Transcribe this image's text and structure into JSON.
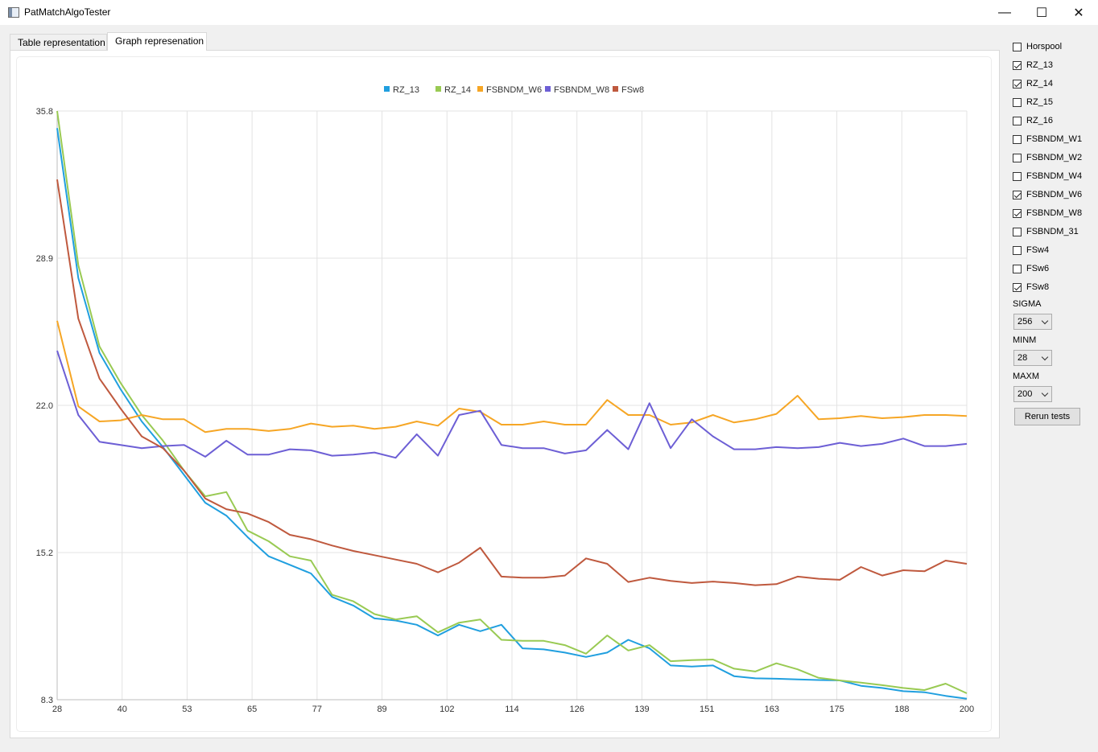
{
  "window": {
    "title": "PatMatchAlgoTester",
    "min": "—",
    "max": "☐",
    "close": "✕"
  },
  "tabs": [
    {
      "label": "Table representation"
    },
    {
      "label": "Graph represenation"
    }
  ],
  "sidebar": {
    "checkboxes": [
      {
        "label": "Horspool",
        "checked": false
      },
      {
        "label": "RZ_13",
        "checked": true
      },
      {
        "label": "RZ_14",
        "checked": true
      },
      {
        "label": "RZ_15",
        "checked": false
      },
      {
        "label": "RZ_16",
        "checked": false
      },
      {
        "label": "FSBNDM_W1",
        "checked": false
      },
      {
        "label": "FSBNDM_W2",
        "checked": false
      },
      {
        "label": "FSBNDM_W4",
        "checked": false
      },
      {
        "label": "FSBNDM_W6",
        "checked": true
      },
      {
        "label": "FSBNDM_W8",
        "checked": true
      },
      {
        "label": "FSBNDM_31",
        "checked": false
      },
      {
        "label": "FSw4",
        "checked": false
      },
      {
        "label": "FSw6",
        "checked": false
      },
      {
        "label": "FSw8",
        "checked": true
      }
    ],
    "sigma": {
      "label": "SIGMA",
      "value": "256"
    },
    "minm": {
      "label": "MINM",
      "value": "28"
    },
    "maxm": {
      "label": "MAXM",
      "value": "200"
    },
    "rerun_label": "Rerun tests"
  },
  "chart_data": {
    "type": "line",
    "title": "",
    "xlabel": "",
    "ylabel": "",
    "xlim": [
      28,
      200
    ],
    "ylim": [
      8.3,
      35.8
    ],
    "x_ticks": [
      "28",
      "40",
      "53",
      "65",
      "77",
      "89",
      "102",
      "114",
      "126",
      "139",
      "151",
      "163",
      "175",
      "188",
      "200"
    ],
    "y_ticks": [
      "35.8",
      "28.9",
      "22.0",
      "15.2",
      "8.3"
    ],
    "grid": true,
    "legend_position": "top-center",
    "x": [
      28,
      32,
      36,
      40,
      44,
      48,
      52,
      56,
      60,
      64,
      68,
      72,
      76,
      80,
      84,
      88,
      92,
      96,
      100,
      104,
      108,
      112,
      116,
      120,
      124,
      128,
      132,
      136,
      140,
      144,
      148,
      152,
      156,
      160,
      164,
      168,
      172,
      176,
      180,
      184,
      188,
      192,
      196,
      200
    ],
    "series": [
      {
        "name": "RZ_13",
        "color": "#209fdf",
        "values": [
          35.0,
          28.0,
          24.5,
          22.8,
          21.3,
          20.1,
          18.8,
          17.5,
          16.9,
          15.9,
          15.0,
          14.6,
          14.2,
          13.1,
          12.7,
          12.1,
          12.0,
          11.8,
          11.3,
          11.8,
          11.5,
          11.8,
          10.7,
          10.65,
          10.5,
          10.3,
          10.5,
          11.1,
          10.7,
          9.9,
          9.85,
          9.9,
          9.4,
          9.3,
          9.28,
          9.25,
          9.22,
          9.2,
          8.95,
          8.85,
          8.7,
          8.65,
          8.48,
          8.35
        ]
      },
      {
        "name": "RZ_14",
        "color": "#99ca53",
        "values": [
          35.8,
          28.6,
          24.8,
          23.1,
          21.6,
          20.4,
          19.0,
          17.8,
          18.0,
          16.2,
          15.7,
          15.0,
          14.8,
          13.2,
          12.9,
          12.3,
          12.05,
          12.2,
          11.45,
          11.9,
          12.05,
          11.1,
          11.05,
          11.05,
          10.85,
          10.45,
          11.3,
          10.6,
          10.85,
          10.1,
          10.15,
          10.18,
          9.75,
          9.62,
          10.0,
          9.72,
          9.32,
          9.2,
          9.1,
          8.98,
          8.85,
          8.75,
          9.05,
          8.6
        ]
      },
      {
        "name": "FSBNDM_W6",
        "color": "#f6a625",
        "values": [
          26.0,
          22.0,
          21.3,
          21.35,
          21.6,
          21.4,
          21.4,
          20.8,
          20.95,
          20.95,
          20.85,
          20.95,
          21.2,
          21.05,
          21.1,
          20.95,
          21.05,
          21.3,
          21.1,
          21.9,
          21.75,
          21.15,
          21.15,
          21.3,
          21.15,
          21.15,
          22.3,
          21.6,
          21.6,
          21.15,
          21.25,
          21.6,
          21.25,
          21.4,
          21.65,
          22.5,
          21.4,
          21.45,
          21.55,
          21.45,
          21.5,
          21.6,
          21.6,
          21.55
        ]
      },
      {
        "name": "FSBNDM_W8",
        "color": "#6d5fd5",
        "values": [
          24.6,
          21.6,
          20.35,
          20.2,
          20.05,
          20.15,
          20.2,
          19.65,
          20.4,
          19.75,
          19.75,
          20.0,
          19.95,
          19.7,
          19.75,
          19.85,
          19.6,
          20.7,
          19.7,
          21.6,
          21.8,
          20.2,
          20.05,
          20.05,
          19.8,
          19.95,
          20.9,
          20.0,
          22.15,
          20.05,
          21.4,
          20.6,
          20.0,
          20.0,
          20.1,
          20.05,
          20.1,
          20.3,
          20.15,
          20.25,
          20.5,
          20.15,
          20.15,
          20.25
        ]
      },
      {
        "name": "FSw8",
        "color": "#bf593e",
        "values": [
          32.6,
          26.1,
          23.3,
          21.9,
          20.6,
          20.05,
          19.0,
          17.7,
          17.2,
          17.0,
          16.6,
          16.0,
          15.8,
          15.5,
          15.25,
          15.05,
          14.85,
          14.65,
          14.25,
          14.7,
          15.4,
          14.05,
          14.0,
          14.0,
          14.1,
          14.9,
          14.65,
          13.8,
          14.0,
          13.85,
          13.75,
          13.82,
          13.75,
          13.65,
          13.7,
          14.05,
          13.95,
          13.9,
          14.5,
          14.1,
          14.35,
          14.3,
          14.8,
          14.65
        ]
      }
    ]
  }
}
